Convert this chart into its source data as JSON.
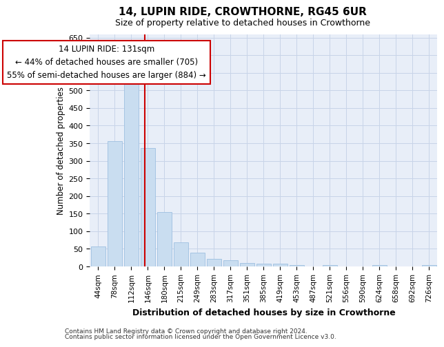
{
  "title": "14, LUPIN RIDE, CROWTHORNE, RG45 6UR",
  "subtitle": "Size of property relative to detached houses in Crowthorne",
  "xlabel": "Distribution of detached houses by size in Crowthorne",
  "ylabel": "Number of detached properties",
  "categories": [
    "44sqm",
    "78sqm",
    "112sqm",
    "146sqm",
    "180sqm",
    "215sqm",
    "249sqm",
    "283sqm",
    "317sqm",
    "351sqm",
    "385sqm",
    "419sqm",
    "453sqm",
    "487sqm",
    "521sqm",
    "556sqm",
    "590sqm",
    "624sqm",
    "658sqm",
    "692sqm",
    "726sqm"
  ],
  "values": [
    57,
    355,
    537,
    337,
    155,
    68,
    40,
    22,
    17,
    10,
    8,
    8,
    3,
    0,
    3,
    0,
    0,
    3,
    0,
    0,
    3
  ],
  "bar_color": "#c9ddf0",
  "bar_edge_color": "#9dbfe0",
  "red_line_x": 2.82,
  "annotation_line1": "14 LUPIN RIDE: 131sqm",
  "annotation_line2": "← 44% of detached houses are smaller (705)",
  "annotation_line3": "55% of semi-detached houses are larger (884) →",
  "annotation_box_color": "#ffffff",
  "annotation_box_edge": "#cc0000",
  "ylim": [
    0,
    660
  ],
  "yticks": [
    0,
    50,
    100,
    150,
    200,
    250,
    300,
    350,
    400,
    450,
    500,
    550,
    600,
    650
  ],
  "grid_color": "#c8d4e8",
  "bg_color": "#e8eef8",
  "footer1": "Contains HM Land Registry data © Crown copyright and database right 2024.",
  "footer2": "Contains public sector information licensed under the Open Government Licence v3.0."
}
